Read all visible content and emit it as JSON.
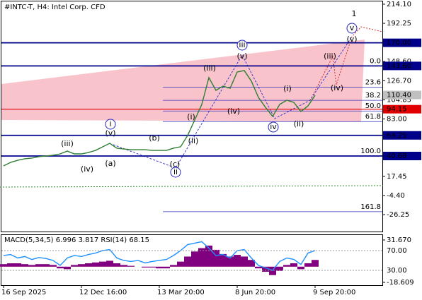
{
  "chart_data": {
    "type": "line",
    "title": "#INTC-T, H4:  Intel Corp. CFD",
    "categories": [
      "16 Sep 2025",
      null,
      null,
      null,
      null,
      null,
      null,
      null,
      null,
      null,
      null,
      "12 Dec 16:00",
      null,
      null,
      null,
      null,
      null,
      null,
      null,
      null,
      null,
      null,
      "13 Mar 20:00",
      null,
      null,
      null,
      null,
      null,
      null,
      null,
      null,
      null,
      null,
      "8 Jun 20:00",
      null,
      null,
      null,
      null,
      null,
      null,
      null,
      null,
      null,
      null,
      "9 Sep 20:00"
    ],
    "values": [
      29.4,
      33.4,
      35.8,
      37.5,
      38.3,
      39.9,
      40.7,
      41.5,
      43.1,
      46.3,
      43.1,
      43.1,
      44.7,
      47.1,
      51.2,
      55.2,
      49.6,
      48.7,
      47.9,
      47.9,
      47.9,
      47.1,
      47.1,
      47.1,
      49.6,
      51.2,
      64.1,
      81.8,
      99.6,
      130.2,
      115.7,
      120.5,
      118.1,
      136.7,
      138.3,
      126.2,
      107.6,
      96.3,
      85.9,
      99.6,
      104.4,
      102.0,
      91.5,
      97.9,
      110.0
    ],
    "color": "#2e7d32",
    "ylim": [
      -45.6,
      218.9
    ],
    "yticks": [
      {
        "value": 214.1,
        "label": "214.10"
      },
      {
        "value": 192.25,
        "label": "192.25"
      },
      {
        "value": 148.6,
        "label": "148.60"
      },
      {
        "value": 126.7,
        "label": "126.70"
      },
      {
        "value": 104.85,
        "label": "104.85"
      },
      {
        "value": 83,
        "label": "83.00"
      },
      {
        "value": 17.45,
        "label": "17.45"
      },
      {
        "value": -4.4,
        "label": "-4.40"
      },
      {
        "value": -26.25,
        "label": "-26.25"
      }
    ],
    "levels": [
      {
        "value": 170,
        "label": "170.00",
        "color": "#00008b"
      },
      {
        "value": 143.6,
        "label": "143.60",
        "color": "#00008b"
      },
      {
        "value": 110.4,
        "label": "110.40",
        "color": "#c0c0c0"
      },
      {
        "value": 94.15,
        "label": "94.15",
        "color": "#e00000"
      },
      {
        "value": 64.25,
        "label": "64.25",
        "color": "#00008b"
      },
      {
        "value": 40.68,
        "label": "40.68",
        "color": "#00008b"
      }
    ],
    "fib": [
      {
        "label": "0.0",
        "value": 143.6
      },
      {
        "label": "23.6",
        "value": 119.3
      },
      {
        "label": "38.2",
        "value": 104.3
      },
      {
        "label": "50.0",
        "value": 92.1
      },
      {
        "label": "61.8",
        "value": 80.0
      },
      {
        "label": "100.0",
        "value": 40.68
      },
      {
        "label": "161.8",
        "value": -22.9
      }
    ],
    "annotations": [
      "1",
      "v",
      "(v)",
      "(iii)",
      "(iv)",
      "(i)",
      "(ii)",
      "iv",
      "iii",
      "(v)",
      "(iii)",
      "(iv)",
      "(i)",
      "(ii)",
      "(c)",
      "ii",
      "(b)",
      "(a)",
      "i",
      "(v)",
      "(iii)",
      "(iv)"
    ],
    "indicator": {
      "label": "MACD(5,34,5) 6.996 3.817 RSI(14) 68.15",
      "macd": {
        "color": "#800080",
        "ylim": [
          -21.96,
          37.5
        ],
        "yticks": [
          {
            "value": 31.67,
            "label": "31.670"
          },
          {
            "value": -18.609,
            "label": "-18.609"
          }
        ],
        "values": [
          3,
          4,
          4,
          3,
          2,
          3,
          3,
          2,
          -2,
          -3,
          2,
          3,
          4,
          5,
          6,
          7,
          4,
          2,
          1,
          0,
          -1,
          -1,
          -2,
          -2,
          2,
          6,
          12,
          18,
          22,
          25,
          20,
          15,
          12,
          14,
          12,
          8,
          -2,
          -6,
          -10,
          -5,
          2,
          4,
          -3,
          4,
          8
        ]
      },
      "rsi": {
        "color": "#1e90ff",
        "ylim": [
          0,
          101.4
        ],
        "yticks": [
          {
            "value": 70,
            "label": "70.00"
          },
          {
            "value": 30,
            "label": "30.00"
          }
        ],
        "values": [
          60,
          62,
          55,
          58,
          52,
          56,
          54,
          50,
          40,
          55,
          60,
          58,
          62,
          65,
          70,
          72,
          55,
          50,
          48,
          50,
          45,
          48,
          50,
          52,
          60,
          70,
          82,
          85,
          88,
          75,
          60,
          62,
          55,
          70,
          72,
          55,
          40,
          35,
          30,
          48,
          55,
          52,
          42,
          65,
          70
        ]
      }
    }
  }
}
